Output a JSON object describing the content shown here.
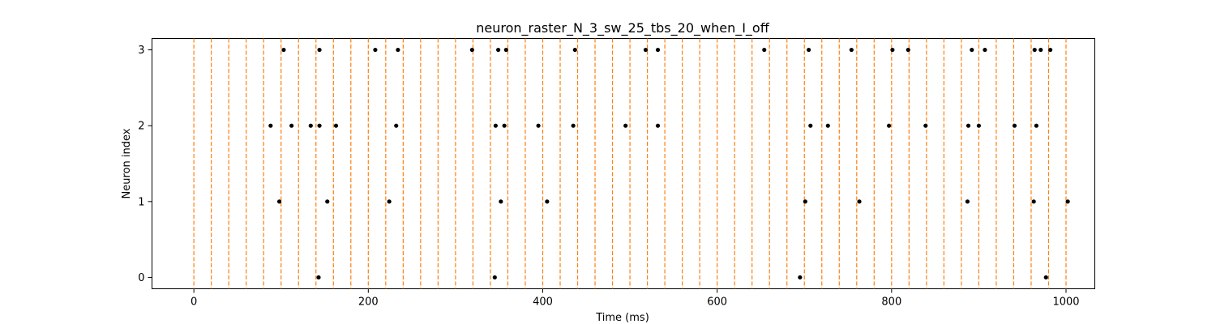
{
  "chart_data": {
    "type": "scatter",
    "title": "neuron_raster_N_3_sw_25_tbs_20_when_I_off",
    "xlabel": "Time (ms)",
    "ylabel": "Neuron index",
    "xlim": [
      -48,
      1033
    ],
    "ylim": [
      -0.15,
      3.15
    ],
    "x_ticks": [
      0,
      200,
      400,
      600,
      800,
      1000
    ],
    "y_ticks": [
      0,
      1,
      2,
      3
    ],
    "grid": false,
    "marker_color": "#000000",
    "boundary_color": "#ff7f0e",
    "time_bin_boundaries": [
      0,
      20,
      40,
      60,
      80,
      100,
      120,
      140,
      160,
      180,
      200,
      220,
      240,
      260,
      280,
      300,
      320,
      340,
      360,
      380,
      400,
      420,
      440,
      460,
      480,
      500,
      520,
      540,
      560,
      580,
      600,
      620,
      640,
      660,
      680,
      700,
      720,
      740,
      760,
      780,
      800,
      820,
      840,
      860,
      880,
      900,
      920,
      940,
      960,
      980,
      1000
    ],
    "series": [
      {
        "neuron": 0,
        "spike_times": [
          143,
          345,
          695,
          977
        ]
      },
      {
        "neuron": 1,
        "spike_times": [
          98,
          153,
          224,
          352,
          405,
          701,
          763,
          887,
          963,
          1002
        ]
      },
      {
        "neuron": 2,
        "spike_times": [
          88,
          112,
          134,
          144,
          163,
          232,
          346,
          356,
          395,
          435,
          495,
          532,
          707,
          727,
          797,
          839,
          888,
          900,
          941,
          966
        ]
      },
      {
        "neuron": 3,
        "spike_times": [
          103,
          144,
          208,
          234,
          319,
          349,
          358,
          437,
          518,
          532,
          654,
          705,
          754,
          801,
          819,
          892,
          907,
          964,
          971,
          982
        ]
      }
    ]
  }
}
